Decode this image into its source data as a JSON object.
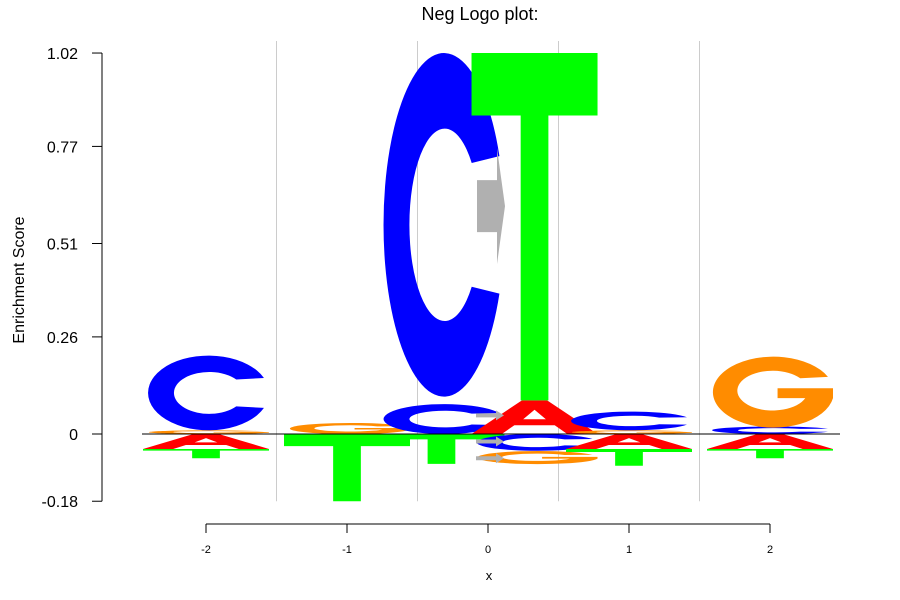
{
  "chart_data": {
    "type": "sequence-logo",
    "title": "Neg Logo plot:",
    "ylabel": "Enrichment Score",
    "xlabel": "x",
    "y_tick_labels": [
      "1.02",
      "0.77",
      "0.51",
      "0.26",
      "0",
      "-0.18"
    ],
    "y_ticks": [
      1.02,
      0.77,
      0.51,
      0.26,
      0,
      -0.18
    ],
    "ylim": [
      -0.18,
      1.02
    ],
    "x_tick_labels": [
      "-2",
      "-1",
      "0",
      "1",
      "2"
    ],
    "x_ticks": [
      -2,
      -1,
      0,
      1,
      2
    ],
    "colors": {
      "A": "#ff0000",
      "C": "#0000ff",
      "G": "#ff8c00",
      "T": "#00ff00",
      "arrow": "#b0b0b0",
      "grid": "#cccccc"
    },
    "positions": [
      {
        "x": -2,
        "letters": [
          {
            "base": "G",
            "lo": 0.0,
            "hi": 0.01
          },
          {
            "base": "C",
            "lo": 0.01,
            "hi": 0.21
          },
          {
            "base": "A",
            "lo": -0.04,
            "hi": 0.0
          },
          {
            "base": "T",
            "lo": -0.065,
            "hi": -0.04
          }
        ]
      },
      {
        "x": -1,
        "letters": [
          {
            "base": "G",
            "lo": 0.0,
            "hi": 0.03
          },
          {
            "base": "T",
            "lo": -0.18,
            "hi": 0.0
          }
        ]
      },
      {
        "x": -0.33,
        "letters": [
          {
            "base": "C",
            "lo": 0.0,
            "hi": 0.08
          },
          {
            "base": "C",
            "lo": 0.1,
            "hi": 1.02
          },
          {
            "base": "T",
            "lo": -0.08,
            "hi": 0.0
          }
        ]
      },
      {
        "x": 0.33,
        "letters": [
          {
            "base": "A",
            "lo": 0.0,
            "hi": 0.09
          },
          {
            "base": "T",
            "lo": 0.09,
            "hi": 1.02
          },
          {
            "base": "C",
            "lo": -0.045,
            "hi": 0.0
          },
          {
            "base": "G",
            "lo": -0.08,
            "hi": -0.045
          }
        ]
      },
      {
        "x": 1,
        "letters": [
          {
            "base": "G",
            "lo": 0.0,
            "hi": 0.01
          },
          {
            "base": "C",
            "lo": 0.01,
            "hi": 0.06
          },
          {
            "base": "A",
            "lo": -0.04,
            "hi": 0.0
          },
          {
            "base": "T",
            "lo": -0.085,
            "hi": -0.04
          }
        ]
      },
      {
        "x": 2,
        "letters": [
          {
            "base": "C",
            "lo": 0.0,
            "hi": 0.02
          },
          {
            "base": "G",
            "lo": 0.02,
            "hi": 0.21
          },
          {
            "base": "A",
            "lo": -0.04,
            "hi": 0.0
          },
          {
            "base": "T",
            "lo": -0.065,
            "hi": -0.04
          }
        ]
      }
    ],
    "arrows": [
      {
        "x": 0,
        "y": 0.61,
        "size": "large"
      },
      {
        "x": 0,
        "y": 0.05,
        "size": "small"
      },
      {
        "x": 0,
        "y": -0.02,
        "size": "small"
      },
      {
        "x": 0,
        "y": -0.065,
        "size": "small"
      }
    ]
  }
}
